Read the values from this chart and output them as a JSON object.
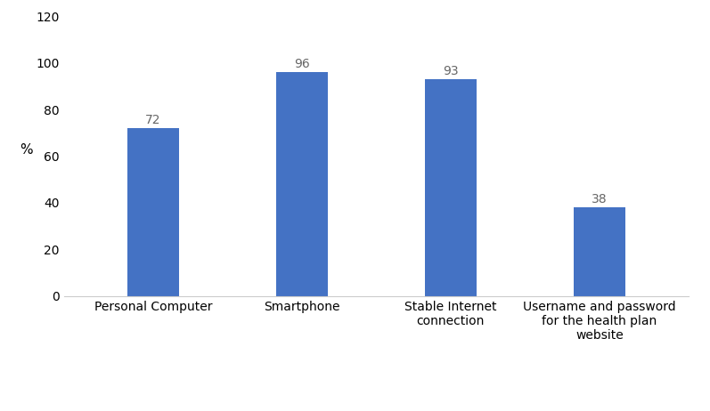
{
  "categories": [
    "Personal Computer",
    "Smartphone",
    "Stable Internet\nconnection",
    "Username and password\nfor the health plan\nwebsite"
  ],
  "values": [
    72,
    96,
    93,
    38
  ],
  "bar_color": "#4472C4",
  "ylabel": "%",
  "ylim": [
    0,
    120
  ],
  "yticks": [
    0,
    20,
    40,
    60,
    80,
    100,
    120
  ],
  "bar_labels": [
    "72",
    "96",
    "93",
    "38"
  ],
  "label_fontsize": 10,
  "tick_fontsize": 10,
  "ylabel_fontsize": 11,
  "bar_width": 0.35,
  "background_color": "#ffffff"
}
